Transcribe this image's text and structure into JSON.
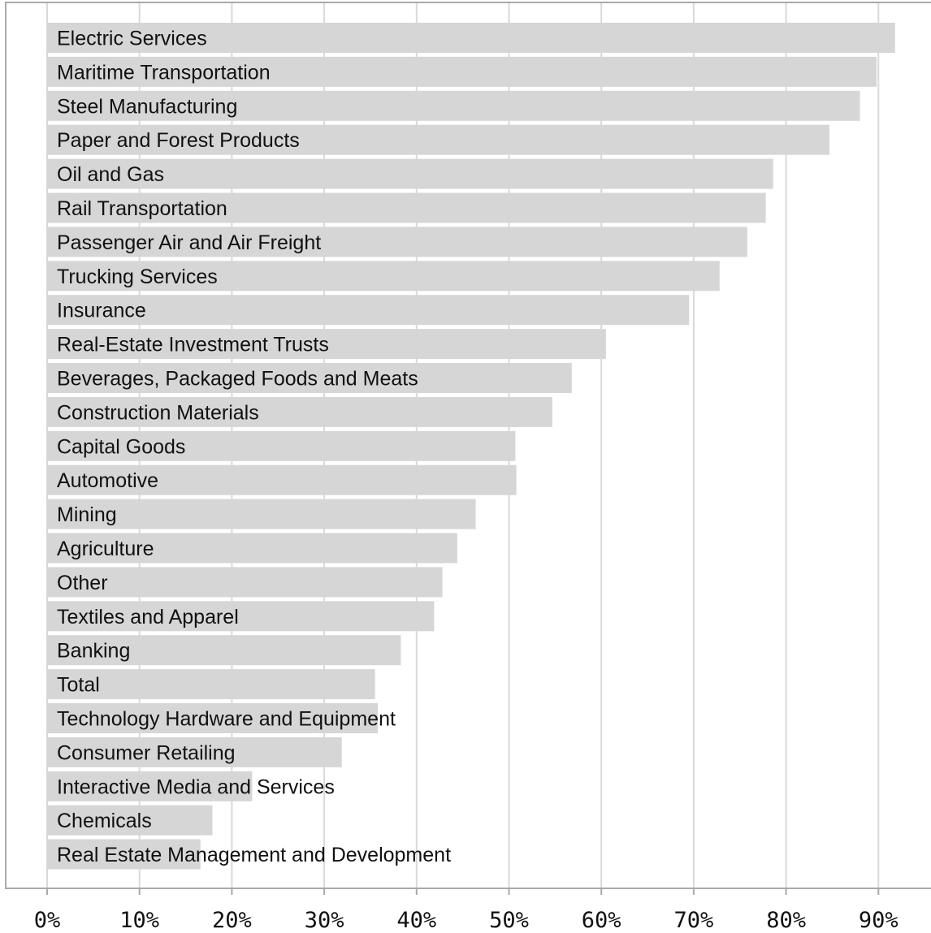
{
  "chart_data": {
    "type": "bar",
    "orientation": "horizontal",
    "title": "",
    "xlabel": "",
    "ylabel": "",
    "xlim": [
      0,
      96
    ],
    "grid": true,
    "legend": "none",
    "bar_color": "#d6d6d6",
    "grid_color": "#d9d9d9",
    "frame_color": "#a9a9a9",
    "x_ticks": [
      {
        "value": 0,
        "label": "0%"
      },
      {
        "value": 10,
        "label": "10%"
      },
      {
        "value": 20,
        "label": "20%"
      },
      {
        "value": 30,
        "label": "30%"
      },
      {
        "value": 40,
        "label": "40%"
      },
      {
        "value": 50,
        "label": "50%"
      },
      {
        "value": 60,
        "label": "60%"
      },
      {
        "value": 70,
        "label": "70%"
      },
      {
        "value": 80,
        "label": "80%"
      },
      {
        "value": 90,
        "label": "90%"
      }
    ],
    "categories": [
      "Electric Services",
      "Maritime Transportation",
      "Steel Manufacturing",
      "Paper and Forest Products",
      "Oil and Gas",
      "Rail Transportation",
      "Passenger Air and Air Freight",
      "Trucking Services",
      "Insurance",
      "Real-Estate Investment Trusts",
      "Beverages, Packaged Foods and Meats",
      "Construction Materials",
      "Capital Goods",
      "Automotive",
      "Mining",
      "Agriculture",
      "Other",
      "Textiles and Apparel",
      "Banking",
      "Total",
      "Technology Hardware and Equipment",
      "Consumer Retailing",
      "Interactive Media and Services",
      "Chemicals",
      "Real Estate Management and Development"
    ],
    "values": [
      91.8,
      89.8,
      88.0,
      84.7,
      78.6,
      77.8,
      75.8,
      72.8,
      69.5,
      60.5,
      56.8,
      54.7,
      50.7,
      50.8,
      46.4,
      44.4,
      42.8,
      41.9,
      38.3,
      35.5,
      35.8,
      31.9,
      22.2,
      17.9,
      16.6
    ]
  }
}
